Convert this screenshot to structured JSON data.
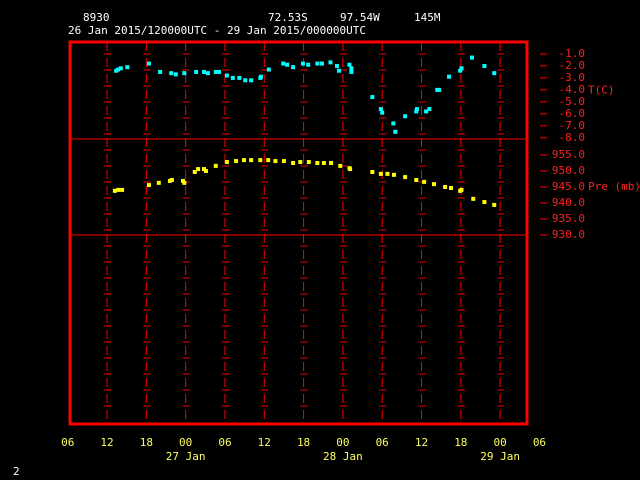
{
  "header": {
    "station": "8930",
    "lat": "72.53S",
    "lon": "97.54W",
    "elev": "145M",
    "period": "26 Jan 2015/120000UTC - 29 Jan 2015/000000UTC"
  },
  "corner_label": "2",
  "x_axis": {
    "xlim": [
      6.35,
      76.1
    ],
    "xticks": [
      {
        "value": 6,
        "label": "06"
      },
      {
        "value": 12,
        "label": "12"
      },
      {
        "value": 18,
        "label": "18"
      },
      {
        "value": 24,
        "label": "00"
      },
      {
        "value": 30,
        "label": "06"
      },
      {
        "value": 36,
        "label": "12"
      },
      {
        "value": 42,
        "label": "18"
      },
      {
        "value": 48,
        "label": "00"
      },
      {
        "value": 54,
        "label": "06"
      },
      {
        "value": 60,
        "label": "12"
      },
      {
        "value": 66,
        "label": "18"
      },
      {
        "value": 72,
        "label": "00"
      },
      {
        "value": 78,
        "label": "06"
      }
    ],
    "date_labels": [
      {
        "value": 24,
        "label": "27 Jan"
      },
      {
        "value": 48,
        "label": "28 Jan"
      },
      {
        "value": 72,
        "label": "29 Jan"
      }
    ]
  },
  "chart_data": [
    {
      "type": "scatter",
      "ylabel": "T(C)",
      "color": "#00ffff",
      "ylim": [
        -8.1,
        0
      ],
      "yticks": [
        {
          "value": -1,
          "label": "-1.0"
        },
        {
          "value": -2,
          "label": "-2.0"
        },
        {
          "value": -3,
          "label": "-3.0"
        },
        {
          "value": -4,
          "label": "-4.0"
        },
        {
          "value": -5,
          "label": "-5.0"
        },
        {
          "value": -6,
          "label": "-6.0"
        },
        {
          "value": -7,
          "label": "-7.0"
        },
        {
          "value": -8,
          "label": "-8.0"
        }
      ],
      "x": [
        13.4,
        13.7,
        14.1,
        15.1,
        18.4,
        20.1,
        21.8,
        22.5,
        23.8,
        25.6,
        26.8,
        27.4,
        28.6,
        29.1,
        30.3,
        31.2,
        32.2,
        33.1,
        34.0,
        35.4,
        35.5,
        36.7,
        38.9,
        39.5,
        40.4,
        41.9,
        42.7,
        44.1,
        44.8,
        46.1,
        47.1,
        47.4,
        49.0,
        49.3,
        49.3,
        52.5,
        53.8,
        54.0,
        55.7,
        56.0,
        57.5,
        59.2,
        59.3,
        60.7,
        61.2,
        62.4,
        62.7,
        64.2,
        65.9,
        66.1,
        67.7,
        69.6,
        71.1
      ],
      "values": [
        -2.4,
        -2.3,
        -2.2,
        -2.1,
        -1.8,
        -2.5,
        -2.6,
        -2.7,
        -2.6,
        -2.5,
        -2.5,
        -2.6,
        -2.5,
        -2.5,
        -2.8,
        -3.0,
        -3.0,
        -3.2,
        -3.2,
        -3.0,
        -2.9,
        -2.3,
        -1.8,
        -1.9,
        -2.1,
        -1.8,
        -1.9,
        -1.8,
        -1.8,
        -1.7,
        -2.0,
        -2.4,
        -1.9,
        -2.2,
        -2.5,
        -4.6,
        -5.6,
        -5.9,
        -6.8,
        -7.5,
        -6.2,
        -5.8,
        -5.6,
        -5.8,
        -5.6,
        -4.0,
        -4.0,
        -2.9,
        -2.4,
        -2.2,
        -1.3,
        -2.0,
        -2.6
      ]
    },
    {
      "type": "scatter",
      "ylabel": "Pre (mb)",
      "color": "#ffff00",
      "ylim": [
        930,
        960
      ],
      "yticks": [
        {
          "value": 955,
          "label": "955.0"
        },
        {
          "value": 950,
          "label": "950.0"
        },
        {
          "value": 945,
          "label": "945.0"
        },
        {
          "value": 940,
          "label": "940.0"
        },
        {
          "value": 935,
          "label": "935.0"
        },
        {
          "value": 930,
          "label": "930.0"
        }
      ],
      "x": [
        13.2,
        13.7,
        14.3,
        18.4,
        19.9,
        21.6,
        21.9,
        23.6,
        23.8,
        25.4,
        25.9,
        26.8,
        27.1,
        28.6,
        30.3,
        31.7,
        32.9,
        34.0,
        35.4,
        36.6,
        37.7,
        39.0,
        40.4,
        41.5,
        42.8,
        44.1,
        45.1,
        46.2,
        47.6,
        49.0,
        49.1,
        52.5,
        53.8,
        54.8,
        55.8,
        57.5,
        59.2,
        60.4,
        61.9,
        63.6,
        64.5,
        65.9,
        66.1,
        67.9,
        69.6,
        71.1
      ],
      "values": [
        943.8,
        944.1,
        944.1,
        945.6,
        946.3,
        946.9,
        947.2,
        946.9,
        946.3,
        949.7,
        950.6,
        950.6,
        950.0,
        951.6,
        952.8,
        953.1,
        953.4,
        953.4,
        953.4,
        953.4,
        953.1,
        953.1,
        952.5,
        952.8,
        952.8,
        952.5,
        952.5,
        952.5,
        951.6,
        950.9,
        950.6,
        949.7,
        949.1,
        949.1,
        948.8,
        948.1,
        947.2,
        946.6,
        945.9,
        945.0,
        944.7,
        943.8,
        944.1,
        941.3,
        940.3,
        939.4
      ]
    }
  ]
}
